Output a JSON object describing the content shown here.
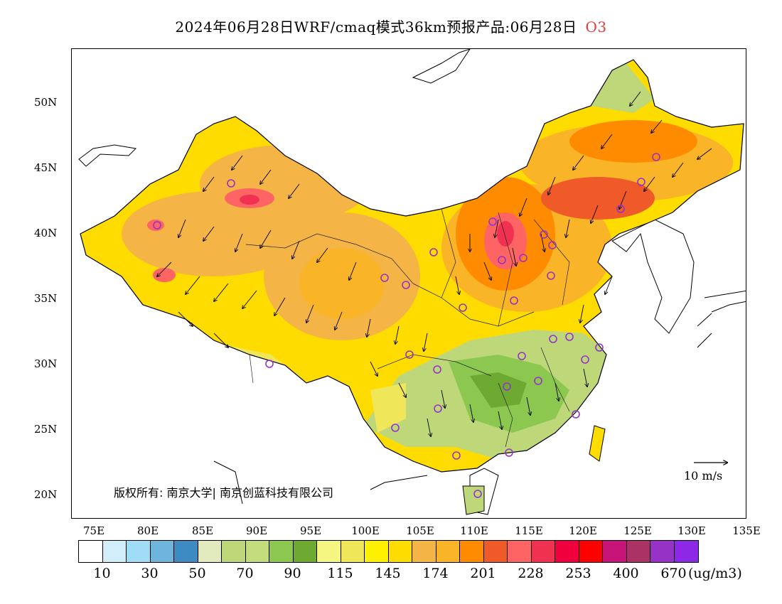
{
  "title": {
    "main": "2024年06月28日WRF/cmaq模式36km预报产品:06月28日",
    "species": "O3"
  },
  "map": {
    "lat_labels": [
      "50N",
      "45N",
      "40N",
      "35N",
      "30N",
      "25N",
      "20N"
    ],
    "lon_labels": [
      "75E",
      "80E",
      "85E",
      "90E",
      "95E",
      "100E",
      "105E",
      "110E",
      "115E",
      "120E",
      "125E",
      "130E",
      "135E"
    ],
    "lat_range": [
      18,
      54
    ],
    "lon_range": [
      73,
      135
    ],
    "copyright": "版权所有: 南京大学| 南京创蓝科技有限公司",
    "wind_reference": "10 m/s"
  },
  "colorbar": {
    "colors": [
      "#ffffff",
      "#d2eefa",
      "#a0dcf5",
      "#6eb4dc",
      "#3c8cc3",
      "#e1ebbe",
      "#bed778",
      "#c3dc7d",
      "#8cc850",
      "#6eaa32",
      "#f5f582",
      "#f0e65a",
      "#fff000",
      "#ffdc00",
      "#f5b446",
      "#fab428",
      "#ff8c00",
      "#f05a28",
      "#ff6464",
      "#f03250",
      "#f0003c",
      "#ff0000",
      "#c81478",
      "#aa3264",
      "#9632c8",
      "#8c28e6"
    ],
    "labels": [
      "10",
      "30",
      "50",
      "70",
      "90",
      "115",
      "145",
      "174",
      "201",
      "228",
      "253",
      "400",
      "670"
    ],
    "unit": "(ug/m3)"
  }
}
